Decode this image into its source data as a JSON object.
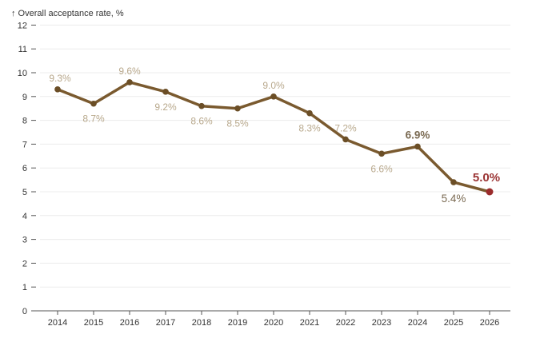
{
  "chart_data": {
    "type": "line",
    "ylabel": "↑ Overall acceptance rate, %",
    "x": [
      "2014",
      "2015",
      "2016",
      "2017",
      "2018",
      "2019",
      "2020",
      "2021",
      "2022",
      "2023",
      "2024",
      "2025",
      "2026"
    ],
    "values": [
      9.3,
      8.7,
      9.6,
      9.2,
      8.6,
      8.5,
      9.0,
      8.3,
      7.2,
      6.6,
      6.9,
      5.4,
      5.0
    ],
    "data_labels": [
      "9.3%",
      "8.7%",
      "9.6%",
      "9.2%",
      "8.6%",
      "8.5%",
      "9.0%",
      "8.3%",
      "7.2%",
      "6.6%",
      "6.9%",
      "5.4%",
      "5.0%"
    ],
    "y_ticks": [
      "0",
      "1",
      "2",
      "3",
      "4",
      "5",
      "6",
      "7",
      "8",
      "9",
      "10",
      "11",
      "12"
    ],
    "ylim": [
      0,
      12
    ],
    "grid": true,
    "colors": {
      "line": "#7a5a2f",
      "point": "#6b4e26",
      "highlight_point": "#9b2c2c",
      "label_light": "#b8a88c",
      "label_dark": "#7a6a52",
      "highlight_label": "#9b3434",
      "grid": "#ececec",
      "axis": "#555555"
    }
  }
}
